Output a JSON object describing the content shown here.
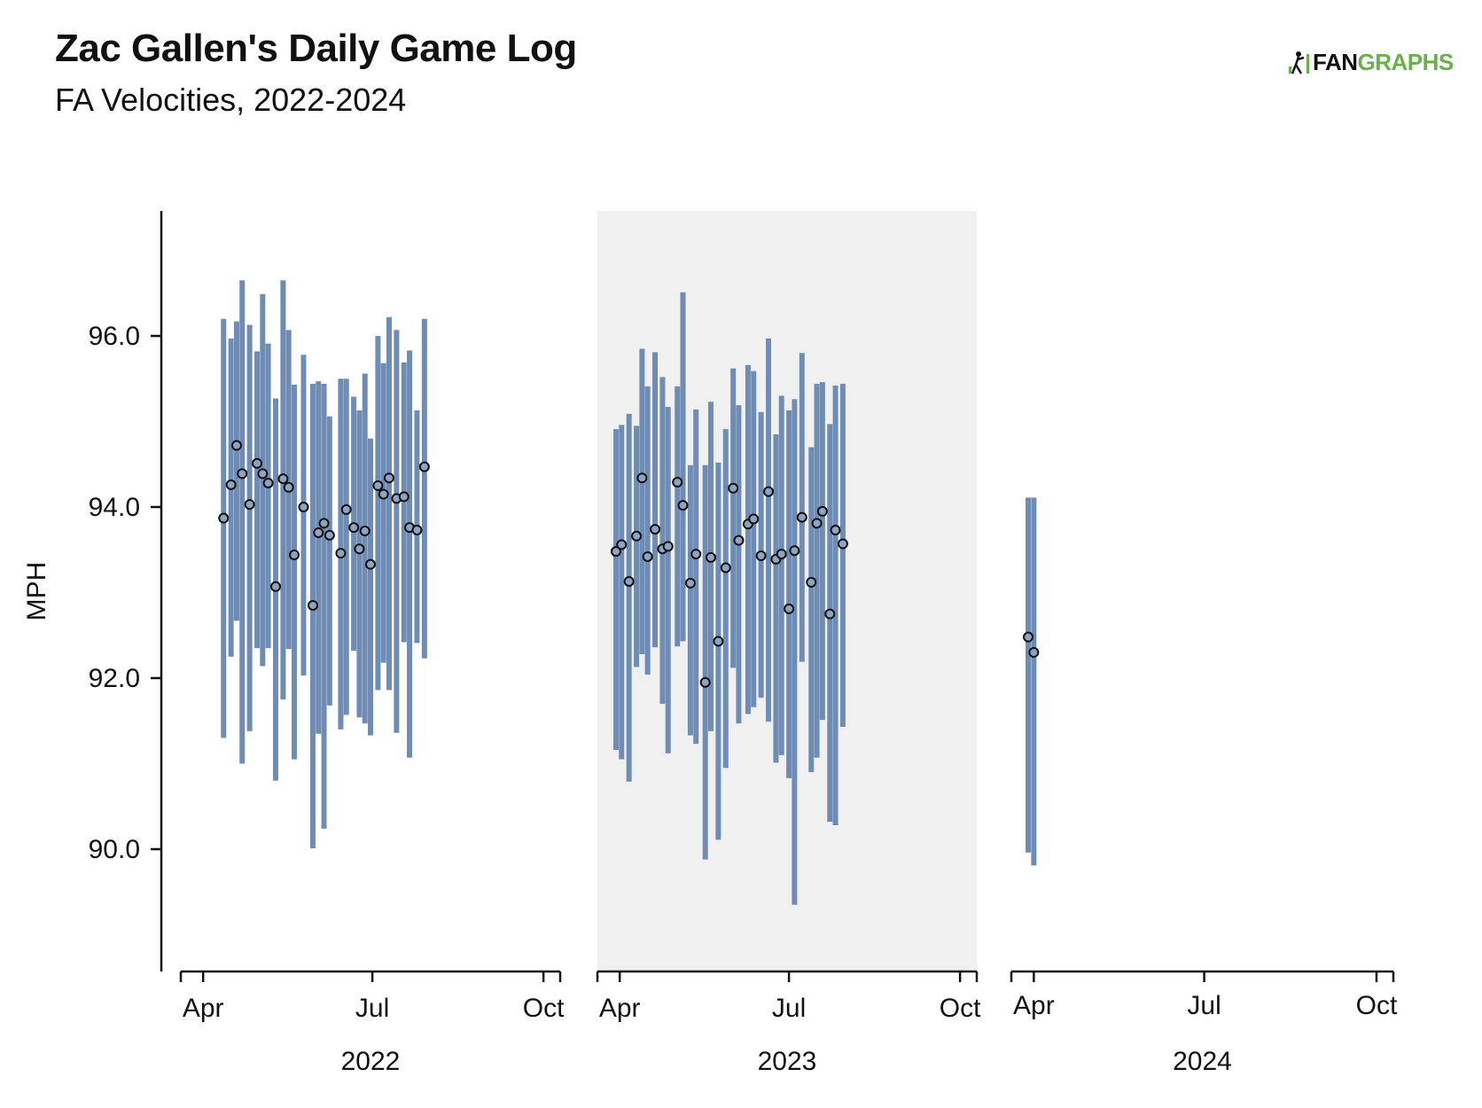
{
  "title": "Zac Gallen's Daily Game Log",
  "subtitle": "FA Velocities, 2022-2024",
  "logo": {
    "fan": "FAN",
    "graphs": "GRAPHS",
    "fan_color": "#111111",
    "graphs_color": "#6ab04c"
  },
  "colors": {
    "range_bar": "#6f8db4",
    "point_fill": "#8fa4c0",
    "point_stroke": "#111111",
    "shaded_panel": "#f0f0f0"
  },
  "chart_data": {
    "type": "range-dot",
    "ylabel": "MPH",
    "ylim": [
      88.6,
      97.4
    ],
    "yticks": [
      "90.0",
      "92.0",
      "94.0",
      "96.0"
    ],
    "shaded_panel": "2023",
    "panels": [
      {
        "year": "2022",
        "xticks": [
          "Apr",
          "Jul",
          "Oct"
        ],
        "xlim": [
          "2022-03-20",
          "2022-10-10"
        ],
        "games": [
          {
            "date": "2022-04-12",
            "avg": 93.87,
            "min": 91.3,
            "max": 96.2
          },
          {
            "date": "2022-04-16",
            "avg": 94.26,
            "min": 92.25,
            "max": 95.97
          },
          {
            "date": "2022-04-19",
            "avg": 94.72,
            "min": 92.67,
            "max": 96.17
          },
          {
            "date": "2022-04-22",
            "avg": 94.39,
            "min": 91.0,
            "max": 96.65
          },
          {
            "date": "2022-04-26",
            "avg": 94.03,
            "min": 91.38,
            "max": 96.13
          },
          {
            "date": "2022-04-30",
            "avg": 94.51,
            "min": 92.35,
            "max": 95.82
          },
          {
            "date": "2022-05-03",
            "avg": 94.39,
            "min": 92.14,
            "max": 96.49
          },
          {
            "date": "2022-05-06",
            "avg": 94.28,
            "min": 92.35,
            "max": 95.91
          },
          {
            "date": "2022-05-10",
            "avg": 93.07,
            "min": 90.8,
            "max": 95.27
          },
          {
            "date": "2022-05-14",
            "avg": 94.33,
            "min": 91.75,
            "max": 96.65
          },
          {
            "date": "2022-05-17",
            "avg": 94.23,
            "min": 92.34,
            "max": 96.07
          },
          {
            "date": "2022-05-20",
            "avg": 93.44,
            "min": 91.05,
            "max": 95.43
          },
          {
            "date": "2022-05-25",
            "avg": 94.0,
            "min": 92.03,
            "max": 95.78
          },
          {
            "date": "2022-05-30",
            "avg": 92.85,
            "min": 90.01,
            "max": 95.44
          },
          {
            "date": "2022-06-02",
            "avg": 93.7,
            "min": 91.35,
            "max": 95.47
          },
          {
            "date": "2022-06-05",
            "avg": 93.81,
            "min": 90.24,
            "max": 95.44
          },
          {
            "date": "2022-06-08",
            "avg": 93.67,
            "min": 91.68,
            "max": 95.06
          },
          {
            "date": "2022-06-14",
            "avg": 93.46,
            "min": 91.4,
            "max": 95.5
          },
          {
            "date": "2022-06-17",
            "avg": 93.97,
            "min": 91.57,
            "max": 95.5
          },
          {
            "date": "2022-06-21",
            "avg": 93.76,
            "min": 92.32,
            "max": 95.29
          },
          {
            "date": "2022-06-24",
            "avg": 93.51,
            "min": 91.54,
            "max": 95.13
          },
          {
            "date": "2022-06-27",
            "avg": 93.72,
            "min": 91.47,
            "max": 95.56
          },
          {
            "date": "2022-06-30",
            "avg": 93.33,
            "min": 91.33,
            "max": 94.8
          },
          {
            "date": "2022-07-04",
            "avg": 94.25,
            "min": 91.86,
            "max": 96.0
          },
          {
            "date": "2022-07-07",
            "avg": 94.15,
            "min": 92.18,
            "max": 95.68
          },
          {
            "date": "2022-07-10",
            "avg": 94.34,
            "min": 91.86,
            "max": 96.22
          },
          {
            "date": "2022-07-14",
            "avg": 94.1,
            "min": 91.36,
            "max": 96.07
          },
          {
            "date": "2022-07-18",
            "avg": 94.12,
            "min": 92.42,
            "max": 95.69
          },
          {
            "date": "2022-07-21",
            "avg": 93.76,
            "min": 91.07,
            "max": 95.83
          },
          {
            "date": "2022-07-25",
            "avg": 93.73,
            "min": 92.41,
            "max": 95.13
          },
          {
            "date": "2022-07-29",
            "avg": 94.47,
            "min": 92.23,
            "max": 96.2
          }
        ]
      },
      {
        "year": "2023",
        "xticks": [
          "Apr",
          "Jul",
          "Oct"
        ],
        "xlim": [
          "2023-03-20",
          "2023-10-10"
        ],
        "games": [
          {
            "date": "2023-03-30",
            "avg": 93.48,
            "min": 91.16,
            "max": 94.91
          },
          {
            "date": "2023-04-02",
            "avg": 93.56,
            "min": 91.05,
            "max": 94.96
          },
          {
            "date": "2023-04-06",
            "avg": 93.13,
            "min": 90.79,
            "max": 95.09
          },
          {
            "date": "2023-04-10",
            "avg": 93.66,
            "min": 92.13,
            "max": 94.95
          },
          {
            "date": "2023-04-13",
            "avg": 94.34,
            "min": 92.28,
            "max": 95.85
          },
          {
            "date": "2023-04-16",
            "avg": 93.42,
            "min": 92.04,
            "max": 95.41
          },
          {
            "date": "2023-04-20",
            "avg": 93.74,
            "min": 92.36,
            "max": 95.81
          },
          {
            "date": "2023-04-24",
            "avg": 93.51,
            "min": 91.7,
            "max": 95.52
          },
          {
            "date": "2023-04-27",
            "avg": 93.54,
            "min": 91.12,
            "max": 95.17
          },
          {
            "date": "2023-05-02",
            "avg": 94.29,
            "min": 92.37,
            "max": 95.41
          },
          {
            "date": "2023-05-05",
            "avg": 94.02,
            "min": 92.43,
            "max": 96.51
          },
          {
            "date": "2023-05-09",
            "avg": 93.11,
            "min": 91.33,
            "max": 94.49
          },
          {
            "date": "2023-05-12",
            "avg": 93.45,
            "min": 91.23,
            "max": 95.14
          },
          {
            "date": "2023-05-17",
            "avg": 91.95,
            "min": 89.88,
            "max": 94.49
          },
          {
            "date": "2023-05-20",
            "avg": 93.41,
            "min": 91.38,
            "max": 95.23
          },
          {
            "date": "2023-05-24",
            "avg": 92.43,
            "min": 90.11,
            "max": 94.52
          },
          {
            "date": "2023-05-28",
            "avg": 93.29,
            "min": 90.95,
            "max": 94.91
          },
          {
            "date": "2023-06-01",
            "avg": 94.22,
            "min": 92.12,
            "max": 95.62
          },
          {
            "date": "2023-06-04",
            "avg": 93.61,
            "min": 91.47,
            "max": 95.19
          },
          {
            "date": "2023-06-09",
            "avg": 93.8,
            "min": 91.58,
            "max": 95.66
          },
          {
            "date": "2023-06-12",
            "avg": 93.86,
            "min": 91.66,
            "max": 95.59
          },
          {
            "date": "2023-06-16",
            "avg": 93.43,
            "min": 91.77,
            "max": 95.11
          },
          {
            "date": "2023-06-20",
            "avg": 94.18,
            "min": 91.49,
            "max": 95.97
          },
          {
            "date": "2023-06-24",
            "avg": 93.39,
            "min": 91.01,
            "max": 94.85
          },
          {
            "date": "2023-06-27",
            "avg": 93.45,
            "min": 91.1,
            "max": 95.3
          },
          {
            "date": "2023-07-01",
            "avg": 92.81,
            "min": 90.83,
            "max": 95.13
          },
          {
            "date": "2023-07-04",
            "avg": 93.49,
            "min": 89.35,
            "max": 95.26
          },
          {
            "date": "2023-07-08",
            "avg": 93.88,
            "min": 92.19,
            "max": 95.8
          },
          {
            "date": "2023-07-13",
            "avg": 93.12,
            "min": 90.9,
            "max": 94.7
          },
          {
            "date": "2023-07-16",
            "avg": 93.81,
            "min": 91.07,
            "max": 95.44
          },
          {
            "date": "2023-07-19",
            "avg": 93.95,
            "min": 91.51,
            "max": 95.46
          },
          {
            "date": "2023-07-23",
            "avg": 92.75,
            "min": 90.32,
            "max": 94.97
          },
          {
            "date": "2023-07-26",
            "avg": 93.73,
            "min": 90.28,
            "max": 95.42
          },
          {
            "date": "2023-07-30",
            "avg": 93.57,
            "min": 91.43,
            "max": 95.44
          }
        ]
      },
      {
        "year": "2024",
        "xticks": [
          "Apr",
          "Jul",
          "Oct"
        ],
        "xlim": [
          "2024-03-20",
          "2024-10-10"
        ],
        "games": [
          {
            "date": "2024-03-29",
            "avg": 92.48,
            "min": 89.96,
            "max": 94.11
          },
          {
            "date": "2024-04-01",
            "avg": 92.3,
            "min": 89.81,
            "max": 94.11
          }
        ]
      }
    ]
  }
}
